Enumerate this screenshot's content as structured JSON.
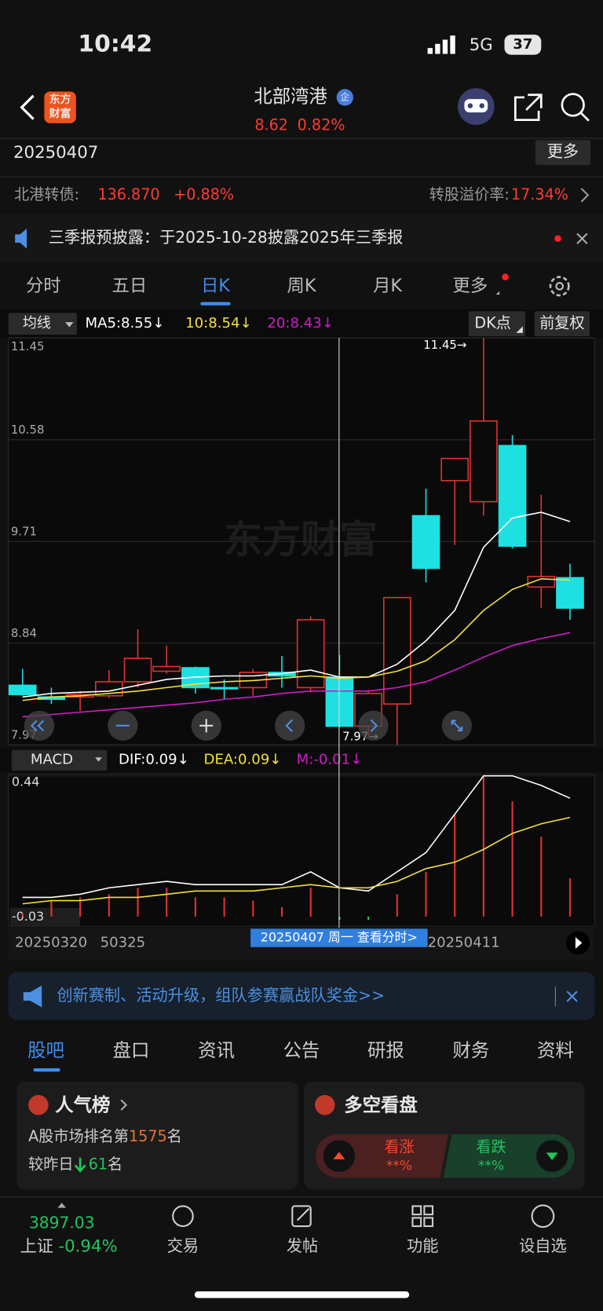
{
  "status_bar": {
    "time": "10:42",
    "network": "5G",
    "battery": "37"
  },
  "logo": [
    "东方",
    "财富"
  ],
  "header": {
    "title": "北部湾港",
    "badge": "企",
    "price": "8.62",
    "change": "0.82%"
  },
  "date_bar": {
    "date": "20250407",
    "more": "更多"
  },
  "bond": {
    "label": "北港转债:",
    "price": "136.870",
    "change": "+0.88%",
    "premium_label": "转股溢价率:",
    "premium": "17.34%"
  },
  "notice": "三季报预披露：于2025-10-28披露2025年三季报",
  "tabs": [
    "分时",
    "五日",
    "日K",
    "周K",
    "月K",
    "更多"
  ],
  "ma_bar": {
    "selector": "均线",
    "ma5": "MA5:8.55↓",
    "ma10": "10:8.54↓",
    "ma20": "20:8.43↓",
    "dk": "DK点",
    "adjust": "前复权"
  },
  "watermark": "东方财富",
  "kline": {
    "up_color": "#e0322f",
    "down_color": "#1fe0e0",
    "ylim": [
      7.97,
      11.45
    ],
    "yticks": [
      11.45,
      10.58,
      9.71,
      8.84,
      7.97
    ],
    "high_label": "11.45→",
    "low_label": "7.97→",
    "candles": [
      {
        "open": 8.48,
        "high": 8.62,
        "low": 8.39,
        "close": 8.4
      },
      {
        "open": 8.38,
        "high": 8.46,
        "low": 8.32,
        "close": 8.36
      },
      {
        "open": 8.38,
        "high": 8.43,
        "low": 8.26,
        "close": 8.4
      },
      {
        "open": 8.39,
        "high": 8.61,
        "low": 8.37,
        "close": 8.51
      },
      {
        "open": 8.51,
        "high": 8.96,
        "low": 8.46,
        "close": 8.71
      },
      {
        "open": 8.6,
        "high": 8.82,
        "low": 8.58,
        "close": 8.64
      },
      {
        "open": 8.63,
        "high": 8.64,
        "low": 8.41,
        "close": 8.46
      },
      {
        "open": 8.46,
        "high": 8.53,
        "low": 8.36,
        "close": 8.45
      },
      {
        "open": 8.46,
        "high": 8.62,
        "low": 8.39,
        "close": 8.59
      },
      {
        "open": 8.59,
        "high": 8.73,
        "low": 8.46,
        "close": 8.56
      },
      {
        "open": 8.46,
        "high": 9.07,
        "low": 8.42,
        "close": 9.04
      },
      {
        "open": 8.55,
        "high": 8.74,
        "low": 8.12,
        "close": 8.13
      },
      {
        "open": 8.13,
        "high": 8.43,
        "low": 8.05,
        "close": 8.41
      },
      {
        "open": 8.32,
        "high": 9.23,
        "low": 7.97,
        "close": 9.23
      },
      {
        "open": 9.93,
        "high": 10.16,
        "low": 9.36,
        "close": 9.48
      },
      {
        "open": 10.23,
        "high": 10.42,
        "low": 9.68,
        "close": 10.42
      },
      {
        "open": 10.05,
        "high": 11.45,
        "low": 9.93,
        "close": 10.74
      },
      {
        "open": 10.53,
        "high": 10.62,
        "low": 9.65,
        "close": 9.67
      },
      {
        "open": 9.32,
        "high": 10.11,
        "low": 9.14,
        "close": 9.41
      },
      {
        "open": 9.4,
        "high": 9.52,
        "low": 9.04,
        "close": 9.14
      }
    ],
    "ma": [
      {
        "color": "#ffffff",
        "values": [
          8.38,
          8.41,
          8.42,
          8.43,
          8.48,
          8.53,
          8.55,
          8.56,
          8.56,
          8.58,
          8.61,
          8.55,
          8.55,
          8.66,
          8.86,
          9.12,
          9.66,
          9.91,
          9.96,
          9.88
        ]
      },
      {
        "color": "#f2e13a",
        "values": [
          8.35,
          8.38,
          8.39,
          8.41,
          8.43,
          8.46,
          8.49,
          8.51,
          8.52,
          8.54,
          8.56,
          8.54,
          8.55,
          8.6,
          8.69,
          8.87,
          9.12,
          9.3,
          9.39,
          9.38
        ]
      },
      {
        "color": "#d21cc8",
        "values": [
          8.21,
          8.23,
          8.25,
          8.27,
          8.29,
          8.31,
          8.33,
          8.36,
          8.38,
          8.41,
          8.43,
          8.43,
          8.43,
          8.46,
          8.51,
          8.61,
          8.72,
          8.82,
          8.88,
          8.93
        ]
      }
    ]
  },
  "macd_bar": {
    "selector": "MACD",
    "dif": "DIF:0.09↓",
    "dea": "DEA:0.09↓",
    "m": "M:-0.01↓"
  },
  "macd": {
    "ylim": [
      -0.03,
      0.44
    ],
    "yticks": [
      0.44,
      -0.03
    ],
    "dif": {
      "color": "#ffffff",
      "values": [
        0.06,
        0.06,
        0.07,
        0.09,
        0.1,
        0.11,
        0.1,
        0.1,
        0.1,
        0.1,
        0.14,
        0.09,
        0.08,
        0.14,
        0.2,
        0.32,
        0.44,
        0.44,
        0.41,
        0.37
      ]
    },
    "dea": {
      "color": "#f2e13a",
      "values": [
        0.04,
        0.05,
        0.05,
        0.06,
        0.06,
        0.07,
        0.08,
        0.08,
        0.08,
        0.09,
        0.1,
        0.09,
        0.09,
        0.11,
        0.15,
        0.17,
        0.21,
        0.26,
        0.29,
        0.31
      ]
    },
    "m": {
      "up_color": "#e0322f",
      "down_color": "#22c55e",
      "values": [
        0.01,
        0.05,
        0.06,
        0.07,
        0.09,
        0.09,
        0.06,
        0.06,
        0.05,
        0.03,
        0.09,
        -0.01,
        -0.01,
        0.07,
        0.14,
        0.32,
        0.44,
        0.36,
        0.25,
        0.12
      ]
    }
  },
  "dates": [
    "20250320",
    "50325",
    "20250411"
  ],
  "crosshair_label": "20250407 周一 查看分时>",
  "banner": "创新赛制、活动升级，组队参赛赢战队奖金>>",
  "bottom_tabs": [
    "股吧",
    "盘口",
    "资讯",
    "公告",
    "研报",
    "财务",
    "资料"
  ],
  "popularity": {
    "title": "人气榜",
    "rank_prefix": "A股市场排名第",
    "rank": "1575",
    "rank_suffix": "名",
    "compare_prefix": "较昨日",
    "compare": "61",
    "compare_suffix": "名"
  },
  "bull_bear": {
    "title": "多空看盘",
    "up": "看涨",
    "up_pct": "**%",
    "down": "看跌",
    "down_pct": "**%"
  },
  "nav": {
    "index_value": "3897.03",
    "index_name": "上证",
    "index_change": "-0.94%",
    "items": [
      "交易",
      "发帖",
      "功能",
      "设自选"
    ]
  }
}
